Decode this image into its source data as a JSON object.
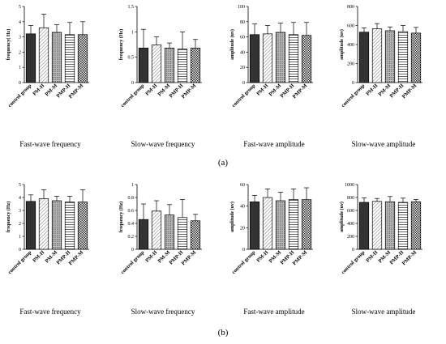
{
  "figure": {
    "panel_labels": [
      "(a)",
      "(b)"
    ],
    "categories": [
      "control group",
      "PM-H",
      "PM-M",
      "PMP-H",
      "PMP-M"
    ],
    "bar_patterns": [
      "solid-black",
      "diagonal-lines",
      "grid-dots",
      "horizontal-lines",
      "checker"
    ]
  },
  "chart_data": [
    {
      "type": "bar",
      "panel": "(a)",
      "title": "Fast-wave frequency",
      "ylabel": "frequency( Hz)",
      "ylim": [
        0,
        5
      ],
      "yticks": [
        0,
        1,
        2,
        3,
        4,
        5
      ],
      "categories": [
        "control group",
        "PM-H",
        "PM-M",
        "PMP-H",
        "PMP-M"
      ],
      "values": [
        3.2,
        3.6,
        3.3,
        3.15,
        3.15
      ],
      "errors": [
        0.55,
        0.9,
        0.5,
        0.8,
        0.85
      ]
    },
    {
      "type": "bar",
      "panel": "(a)",
      "title": "Slow-wave frequency",
      "ylabel": "frequency (Hz)",
      "ylim": [
        0,
        1.5
      ],
      "yticks": [
        0.0,
        0.5,
        1.0,
        1.5
      ],
      "categories": [
        "control group",
        "PM-H",
        "PM-M",
        "PMP-H",
        "PMP-M"
      ],
      "values": [
        0.68,
        0.74,
        0.68,
        0.66,
        0.68
      ],
      "errors": [
        0.37,
        0.16,
        0.1,
        0.34,
        0.17
      ]
    },
    {
      "type": "bar",
      "panel": "(a)",
      "title": "Fast-wave amplitude",
      "ylabel": "amplitude (uv)",
      "ylim": [
        0,
        100
      ],
      "yticks": [
        0,
        20,
        40,
        60,
        80,
        100
      ],
      "categories": [
        "control group",
        "PM-H",
        "PM-M",
        "PMP-H",
        "PMP-M"
      ],
      "values": [
        63,
        64,
        66,
        63,
        62
      ],
      "errors": [
        14,
        11,
        12,
        16,
        17
      ]
    },
    {
      "type": "bar",
      "panel": "(a)",
      "title": "Slow-wave amplitude",
      "ylabel": "amplitude (uv)",
      "ylim": [
        0,
        800
      ],
      "yticks": [
        0,
        200,
        400,
        600,
        800
      ],
      "categories": [
        "control group",
        "PM-H",
        "PM-M",
        "PMP-H",
        "PMP-M"
      ],
      "values": [
        530,
        565,
        545,
        535,
        520
      ],
      "errors": [
        45,
        55,
        40,
        65,
        60
      ]
    },
    {
      "type": "bar",
      "panel": "(b)",
      "title": "Fast-wave frequency",
      "ylabel": "frequency (Hz)",
      "ylim": [
        0,
        5
      ],
      "yticks": [
        0,
        1,
        2,
        3,
        4,
        5
      ],
      "categories": [
        "control group",
        "PM-H",
        "PM-M",
        "PMP-H",
        "PMP-M"
      ],
      "values": [
        3.7,
        3.9,
        3.75,
        3.65,
        3.65
      ],
      "errors": [
        0.5,
        0.7,
        0.35,
        0.45,
        0.95
      ]
    },
    {
      "type": "bar",
      "panel": "(b)",
      "title": "Slow-wave frequency",
      "ylabel": "frequency (Hz)",
      "ylim": [
        0,
        1.0
      ],
      "yticks": [
        0.0,
        0.2,
        0.4,
        0.6,
        0.8,
        1.0
      ],
      "categories": [
        "control group",
        "PM-H",
        "PM-M",
        "PMP-H",
        "PMP-M"
      ],
      "values": [
        0.46,
        0.59,
        0.53,
        0.49,
        0.44
      ],
      "errors": [
        0.24,
        0.16,
        0.16,
        0.28,
        0.1
      ]
    },
    {
      "type": "bar",
      "panel": "(b)",
      "title": "Fast-wave amplitude",
      "ylabel": "amplitude (uv)",
      "ylim": [
        0,
        60
      ],
      "yticks": [
        0,
        20,
        40,
        60
      ],
      "categories": [
        "control group",
        "PM-H",
        "PM-M",
        "PMP-H",
        "PMP-M"
      ],
      "values": [
        44,
        48,
        45,
        46,
        46
      ],
      "errors": [
        6,
        8,
        8,
        10,
        11
      ]
    },
    {
      "type": "bar",
      "panel": "(b)",
      "title": "Slow-wave amplitude",
      "ylabel": "amplitude (uv)",
      "ylim": [
        0,
        1000
      ],
      "yticks": [
        0,
        200,
        400,
        600,
        800,
        1000
      ],
      "categories": [
        "control group",
        "PM-H",
        "PM-M",
        "PMP-H",
        "PMP-M"
      ],
      "values": [
        725,
        740,
        735,
        725,
        735
      ],
      "errors": [
        70,
        45,
        80,
        65,
        35
      ]
    }
  ]
}
